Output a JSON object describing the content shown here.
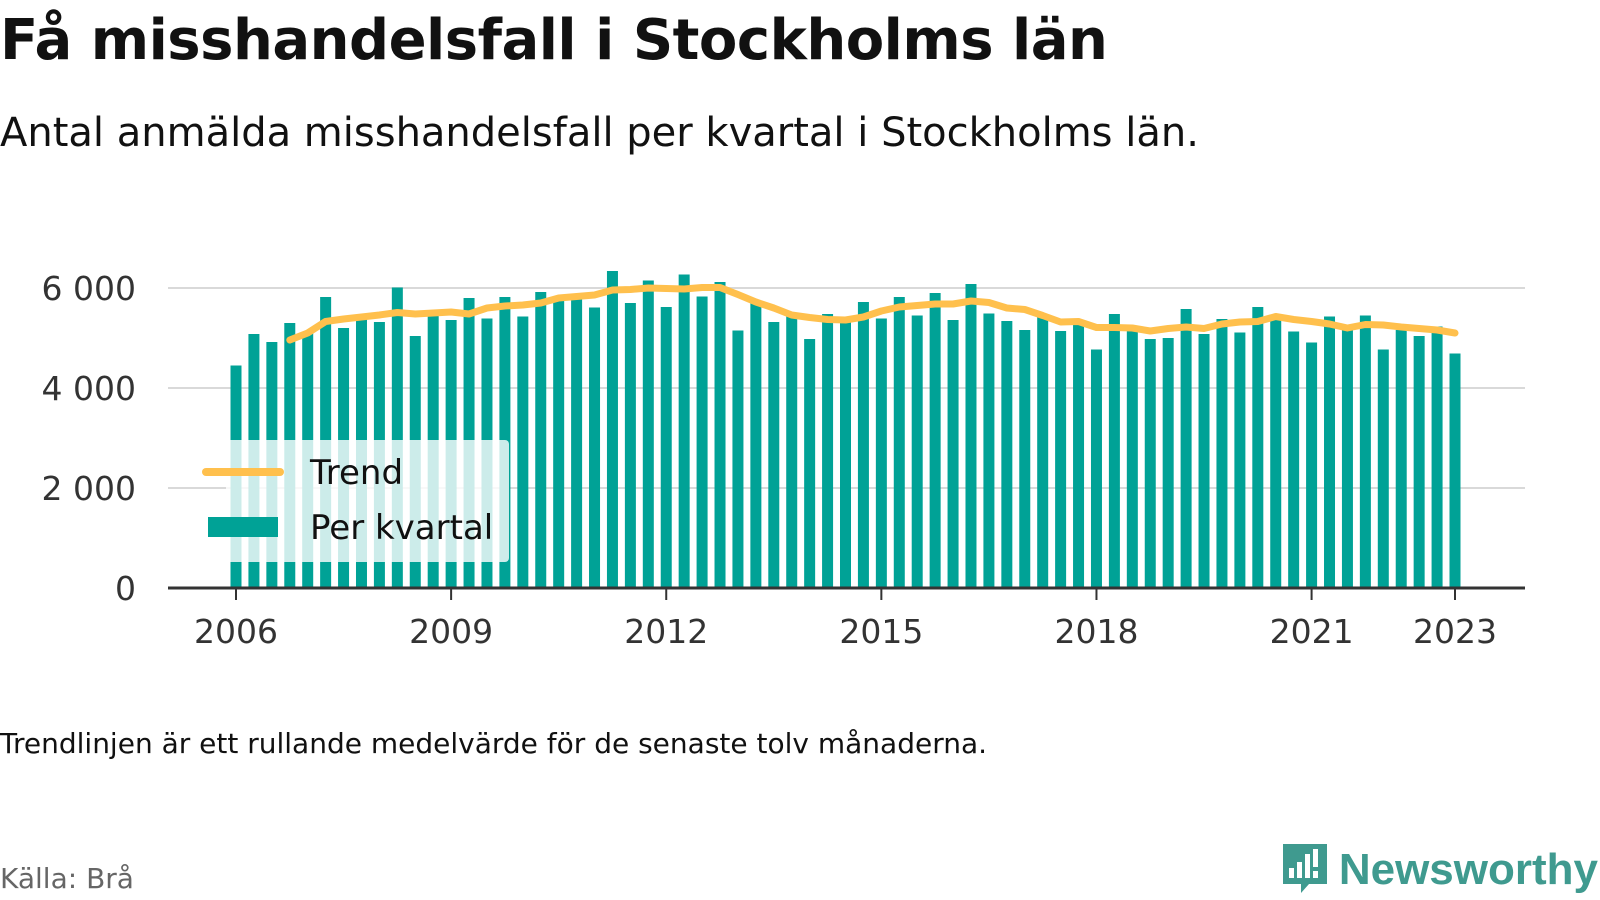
{
  "title": "Få misshandelsfall i Stockholms län",
  "subtitle": "Antal anmälda misshandelsfall per kvartal i Stockholms län.",
  "note": "Trendlinjen är ett rullande medelvärde för de senaste tolv månaderna.",
  "source": "Källa: Brå",
  "brand": {
    "name": "Newsworthy",
    "icon": "newsworthy-logo-icon",
    "color": "#3f9a8f"
  },
  "colors": {
    "bars": "#00a296",
    "trend": "#ffc04d",
    "grid": "#d9d9d9",
    "axis": "#333333"
  },
  "chart_data": {
    "type": "bar",
    "title": "Få misshandelsfall i Stockholms län",
    "subtitle": "Antal anmälda misshandelsfall per kvartal i Stockholms län.",
    "xlabel": "",
    "ylabel": "",
    "ylim": [
      0,
      6000
    ],
    "yticks": [
      0,
      2000,
      4000,
      6000
    ],
    "ytick_labels": [
      "0",
      "2 000",
      "4 000",
      "6 000"
    ],
    "xticks": [
      2006,
      2009,
      2012,
      2015,
      2018,
      2021,
      2023
    ],
    "xtick_labels": [
      "2006",
      "2009",
      "2012",
      "2015",
      "2018",
      "2021",
      "2023"
    ],
    "grid": true,
    "legend": {
      "placement": "bottom-left",
      "entries": [
        "Trend",
        "Per kvartal"
      ]
    },
    "quarter_labels": [
      "2006 K1",
      "2006 K2",
      "2006 K3",
      "2006 K4",
      "2007 K1",
      "2007 K2",
      "2007 K3",
      "2007 K4",
      "2008 K1",
      "2008 K2",
      "2008 K3",
      "2008 K4",
      "2009 K1",
      "2009 K2",
      "2009 K3",
      "2009 K4",
      "2010 K1",
      "2010 K2",
      "2010 K3",
      "2010 K4",
      "2011 K1",
      "2011 K2",
      "2011 K3",
      "2011 K4",
      "2012 K1",
      "2012 K2",
      "2012 K3",
      "2012 K4",
      "2013 K1",
      "2013 K2",
      "2013 K3",
      "2013 K4",
      "2014 K1",
      "2014 K2",
      "2014 K3",
      "2014 K4",
      "2015 K1",
      "2015 K2",
      "2015 K3",
      "2015 K4",
      "2016 K1",
      "2016 K2",
      "2016 K3",
      "2016 K4",
      "2017 K1",
      "2017 K2",
      "2017 K3",
      "2017 K4",
      "2018 K1",
      "2018 K2",
      "2018 K3",
      "2018 K4",
      "2019 K1",
      "2019 K2",
      "2019 K3",
      "2019 K4",
      "2020 K1",
      "2020 K2",
      "2020 K3",
      "2020 K4",
      "2021 K1",
      "2021 K2",
      "2021 K3",
      "2021 K4",
      "2022 K1",
      "2022 K2",
      "2022 K3",
      "2022 K4",
      "2023 K1"
    ],
    "series": [
      {
        "name": "Per kvartal",
        "values": [
          4450,
          5080,
          4920,
          5300,
          5100,
          5820,
          5200,
          5420,
          5320,
          6010,
          5040,
          5550,
          5360,
          5800,
          5390,
          5820,
          5430,
          5920,
          5840,
          5800,
          5610,
          6340,
          5700,
          6150,
          5620,
          6270,
          5830,
          6120,
          5150,
          5720,
          5320,
          5500,
          4980,
          5480,
          5350,
          5720,
          5390,
          5820,
          5450,
          5900,
          5360,
          6080,
          5490,
          5340,
          5160,
          5450,
          5140,
          5310,
          4770,
          5480,
          5160,
          4980,
          5000,
          5580,
          5080,
          5380,
          5110,
          5620,
          5360,
          5130,
          4910,
          5430,
          5170,
          5450,
          4770,
          5160,
          5040,
          5230,
          4690
        ]
      },
      {
        "name": "Trend",
        "values": [
          null,
          null,
          null,
          4960,
          5100,
          5330,
          5380,
          5420,
          5460,
          5510,
          5480,
          5500,
          5520,
          5480,
          5600,
          5640,
          5660,
          5700,
          5800,
          5830,
          5860,
          5960,
          5970,
          6000,
          5990,
          5980,
          6010,
          6010,
          5870,
          5720,
          5600,
          5460,
          5410,
          5370,
          5360,
          5420,
          5540,
          5620,
          5650,
          5680,
          5680,
          5740,
          5710,
          5600,
          5570,
          5450,
          5320,
          5330,
          5210,
          5210,
          5200,
          5140,
          5190,
          5220,
          5190,
          5280,
          5320,
          5330,
          5430,
          5370,
          5330,
          5280,
          5200,
          5270,
          5260,
          5220,
          5190,
          5160,
          5100
        ]
      }
    ]
  }
}
